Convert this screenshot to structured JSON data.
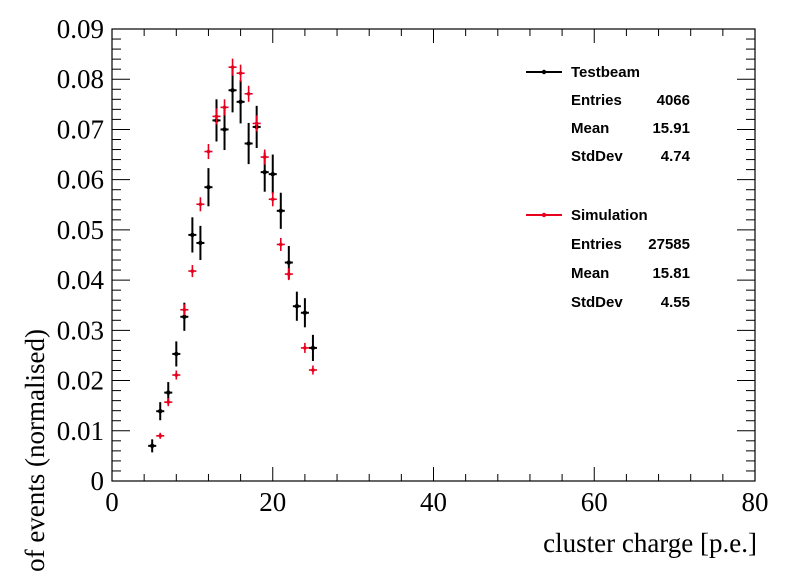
{
  "chart_data": {
    "type": "scatter",
    "xlabel": "cluster charge [p.e.]",
    "ylabel": "# of events (normalised)",
    "xlim": [
      0,
      80
    ],
    "ylim": [
      0,
      0.09
    ],
    "x_ticks": [
      "0",
      "20",
      "40",
      "60",
      "80"
    ],
    "y_ticks": [
      "0",
      "0.01",
      "0.02",
      "0.03",
      "0.04",
      "0.05",
      "0.06",
      "0.07",
      "0.08",
      "0.09"
    ],
    "grid": false,
    "legend_position": "top-right",
    "series": [
      {
        "name": "Testbeam",
        "color": "#000000",
        "stats": [
          {
            "label": "Entries",
            "value": "4066"
          },
          {
            "label": "Mean",
            "value": "15.91"
          },
          {
            "label": "StdDev",
            "value": "4.74"
          }
        ],
        "x": [
          5,
          6,
          7,
          8,
          9,
          10,
          11,
          12,
          13,
          14,
          15,
          16,
          17,
          18,
          19,
          20,
          21,
          22,
          23,
          24,
          25
        ],
        "y": [
          0.007,
          0.0139,
          0.0176,
          0.0253,
          0.0327,
          0.049,
          0.0474,
          0.0585,
          0.0718,
          0.07,
          0.0778,
          0.0755,
          0.0672,
          0.0705,
          0.0615,
          0.0611,
          0.0538,
          0.0435,
          0.0348,
          0.0335,
          0.0265
        ],
        "yerr": [
          0.0013,
          0.0018,
          0.0021,
          0.0025,
          0.0028,
          0.0035,
          0.0034,
          0.0038,
          0.0042,
          0.0041,
          0.0044,
          0.0043,
          0.0041,
          0.0042,
          0.0039,
          0.0039,
          0.0036,
          0.0033,
          0.0029,
          0.0029,
          0.0026
        ]
      },
      {
        "name": "Simulation",
        "color": "#e8001c",
        "stats": [
          {
            "label": "Entries",
            "value": "27585"
          },
          {
            "label": "Mean",
            "value": "15.81"
          },
          {
            "label": "StdDev",
            "value": "4.55"
          }
        ],
        "x": [
          6,
          7,
          8,
          9,
          10,
          11,
          12,
          13,
          14,
          15,
          16,
          17,
          18,
          19,
          20,
          21,
          22,
          24,
          25
        ],
        "y": [
          0.009,
          0.0157,
          0.0211,
          0.0341,
          0.0418,
          0.0551,
          0.0656,
          0.0726,
          0.0744,
          0.0824,
          0.0812,
          0.0771,
          0.0712,
          0.0645,
          0.0561,
          0.0471,
          0.0412,
          0.0265,
          0.0221
        ],
        "yerr": [
          0.0006,
          0.0008,
          0.0009,
          0.0011,
          0.0012,
          0.0014,
          0.0015,
          0.0016,
          0.0016,
          0.0017,
          0.0017,
          0.0016,
          0.0016,
          0.0015,
          0.0014,
          0.0013,
          0.0012,
          0.001,
          0.0009
        ]
      }
    ]
  }
}
